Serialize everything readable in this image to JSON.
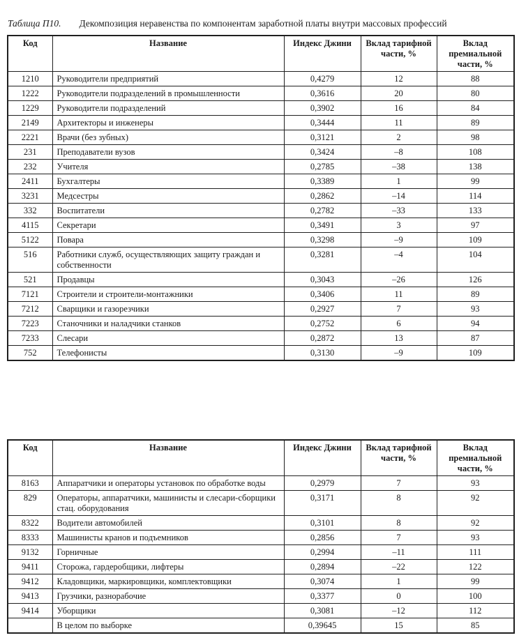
{
  "caption": {
    "label": "Таблица П10.",
    "text": "Декомпозиция неравенства по компонентам заработной платы внутри массовых профессий"
  },
  "columns": {
    "code": "Код",
    "name": "Название",
    "gini": "Индекс Джини",
    "tariff": "Вклад тарифной части, %",
    "premium": "Вклад премиальной части, %"
  },
  "table1": {
    "rows": [
      {
        "code": "1210",
        "name": "Руководители предприятий",
        "gini": "0,4279",
        "tariff": "12",
        "premium": "88"
      },
      {
        "code": "1222",
        "name": "Руководители подразделений в промышленности",
        "gini": "0,3616",
        "tariff": "20",
        "premium": "80"
      },
      {
        "code": "1229",
        "name": "Руководители подразделений",
        "gini": "0,3902",
        "tariff": "16",
        "premium": "84"
      },
      {
        "code": "2149",
        "name": "Архитекторы и инженеры",
        "gini": "0,3444",
        "tariff": "11",
        "premium": "89"
      },
      {
        "code": "2221",
        "name": "Врачи (без зубных)",
        "gini": "0,3121",
        "tariff": "2",
        "premium": "98"
      },
      {
        "code": "231",
        "name": "Преподаватели вузов",
        "gini": "0,3424",
        "tariff": "–8",
        "premium": "108"
      },
      {
        "code": "232",
        "name": "Учителя",
        "gini": "0,2785",
        "tariff": "–38",
        "premium": "138"
      },
      {
        "code": "2411",
        "name": "Бухгалтеры",
        "gini": "0,3389",
        "tariff": "1",
        "premium": "99"
      },
      {
        "code": "3231",
        "name": "Медсестры",
        "gini": "0,2862",
        "tariff": "–14",
        "premium": "114"
      },
      {
        "code": "332",
        "name": "Воспитатели",
        "gini": "0,2782",
        "tariff": "–33",
        "premium": "133"
      },
      {
        "code": "4115",
        "name": "Секретари",
        "gini": "0,3491",
        "tariff": "3",
        "premium": "97"
      },
      {
        "code": "5122",
        "name": "Повара",
        "gini": "0,3298",
        "tariff": "–9",
        "premium": "109"
      },
      {
        "code": "516",
        "name": "Работники служб, осуществляющих защиту граждан и собственности",
        "gini": "0,3281",
        "tariff": "–4",
        "premium": "104"
      },
      {
        "code": "521",
        "name": "Продавцы",
        "gini": "0,3043",
        "tariff": "–26",
        "premium": "126"
      },
      {
        "code": "7121",
        "name": "Строители и строители-монтажники",
        "gini": "0,3406",
        "tariff": "11",
        "premium": "89"
      },
      {
        "code": "7212",
        "name": "Сварщики и газорезчики",
        "gini": "0,2927",
        "tariff": "7",
        "premium": "93"
      },
      {
        "code": "7223",
        "name": "Станочники и наладчики станков",
        "gini": "0,2752",
        "tariff": "6",
        "premium": "94"
      },
      {
        "code": "7233",
        "name": "Слесари",
        "gini": "0,2872",
        "tariff": "13",
        "premium": "87"
      },
      {
        "code": "752",
        "name": "Телефонисты",
        "gini": "0,3130",
        "tariff": "–9",
        "premium": "109"
      }
    ]
  },
  "table2": {
    "rows": [
      {
        "code": "8163",
        "name": "Аппаратчики и операторы установок по обработке воды",
        "gini": "0,2979",
        "tariff": "7",
        "premium": "93"
      },
      {
        "code": "829",
        "name": "Операторы, аппаратчики, машинисты и слесари-сборщики стац. оборудования",
        "gini": "0,3171",
        "tariff": "8",
        "premium": "92"
      },
      {
        "code": "8322",
        "name": "Водители автомобилей",
        "gini": "0,3101",
        "tariff": "8",
        "premium": "92"
      },
      {
        "code": "8333",
        "name": "Машинисты кранов и подъемников",
        "gini": "0,2856",
        "tariff": "7",
        "premium": "93"
      },
      {
        "code": "9132",
        "name": "Горничные",
        "gini": "0,2994",
        "tariff": "–11",
        "premium": "111"
      },
      {
        "code": "9411",
        "name": "Сторожа, гардеробщики, лифтеры",
        "gini": "0,2894",
        "tariff": "–22",
        "premium": "122"
      },
      {
        "code": "9412",
        "name": "Кладовщики, маркировщики, комплектовщики",
        "gini": "0,3074",
        "tariff": "1",
        "premium": "99"
      },
      {
        "code": "9413",
        "name": "Грузчики, разнорабочие",
        "gini": "0,3377",
        "tariff": "0",
        "premium": "100"
      },
      {
        "code": "9414",
        "name": "Уборщики",
        "gini": "0,3081",
        "tariff": "–12",
        "premium": "112"
      },
      {
        "code": "",
        "name": "В целом по выборке",
        "gini": "0,39645",
        "tariff": "15",
        "premium": "85"
      }
    ]
  }
}
